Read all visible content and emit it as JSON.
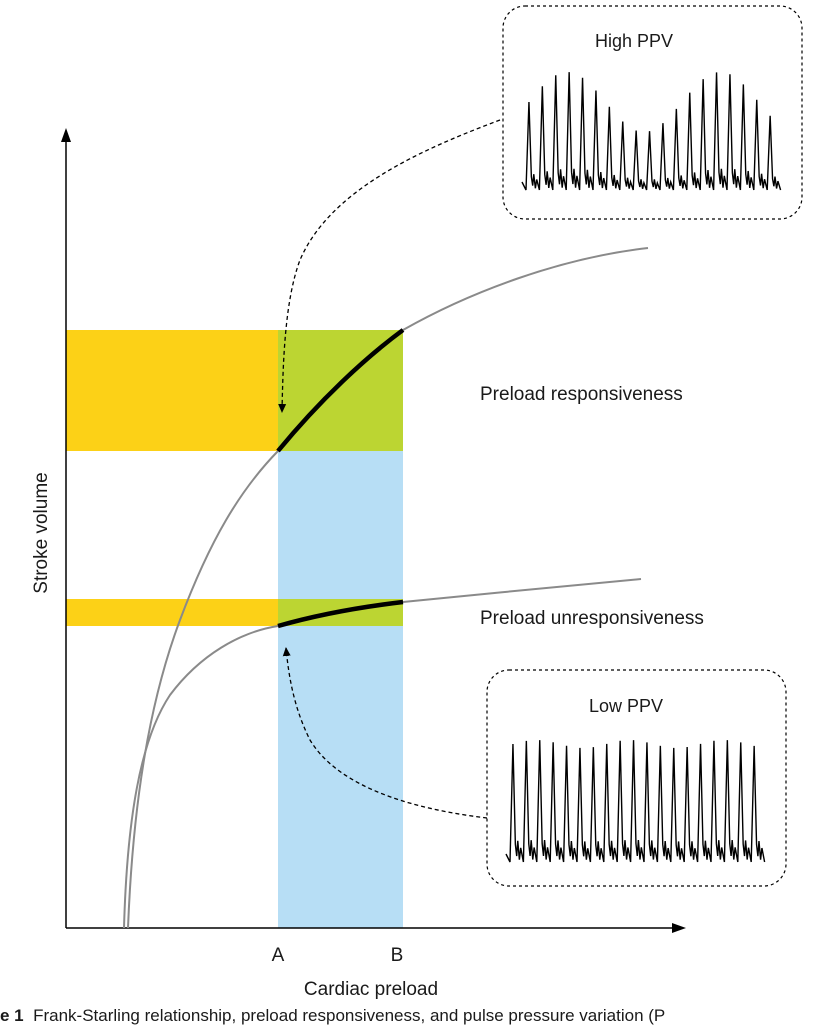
{
  "axes": {
    "y_label": "Stroke volume",
    "x_label": "Cardiac preload",
    "x_ticks": [
      "A",
      "B"
    ]
  },
  "regions": {
    "upper_label": "Preload responsiveness",
    "lower_label": "Preload unresponsiveness"
  },
  "insets": {
    "high": {
      "title": "High PPV"
    },
    "low": {
      "title": "Low PPV"
    }
  },
  "caption": {
    "prefix": "e 1",
    "text": "Frank-Starling relationship, preload responsiveness, and pulse pressure variation (P"
  },
  "colors": {
    "yellow": "#fcd117",
    "green": "#bcd532",
    "blue": "#b7def5",
    "curve": "#8a8a8a",
    "highlight": "#000000"
  }
}
